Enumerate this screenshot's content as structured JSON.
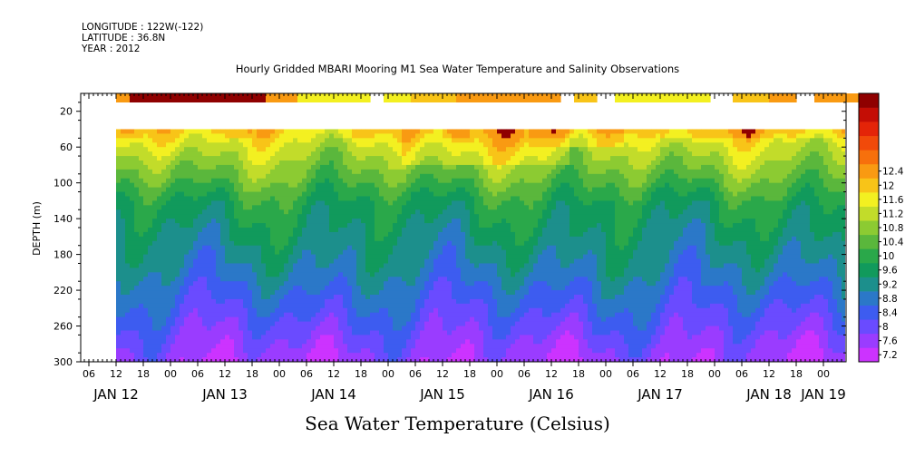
{
  "header": {
    "longitude": "LONGITUDE : 122W(-122)",
    "latitude": "LATITUDE : 36.8N",
    "year": "YEAR : 2012",
    "title": "Hourly Gridded MBARI Mooring M1 Sea Water Temperature and Salinity Observations"
  },
  "chart_data": {
    "type": "heatmap",
    "title": "Hourly Gridded MBARI Mooring M1 Sea Water Temperature and Salinity Observations",
    "xlabel": "",
    "ylabel": "DEPTH (m)",
    "colorbar_label": "Sea Water Temperature (Celsius)",
    "y_axis": {
      "range": [
        300,
        0
      ],
      "ticks": [
        20,
        60,
        100,
        140,
        180,
        220,
        260,
        300
      ]
    },
    "x_axis": {
      "hour_ticks": [
        "06",
        "12",
        "18",
        "00",
        "06",
        "12",
        "18",
        "00",
        "06",
        "12",
        "18",
        "00",
        "06",
        "12",
        "18",
        "00",
        "06",
        "12",
        "18",
        "00",
        "06",
        "12",
        "18",
        "00",
        "06",
        "12",
        "18",
        "00",
        "06",
        "12",
        "18",
        "00"
      ],
      "day_labels": [
        "JAN 12",
        "JAN 13",
        "JAN 14",
        "JAN 15",
        "JAN 16",
        "JAN 17",
        "JAN 18",
        "JAN 19"
      ],
      "day_label_hours": [
        0,
        24,
        48,
        72,
        96,
        120,
        144,
        156
      ]
    },
    "colorbar_levels": [
      7.2,
      7.6,
      8,
      8.4,
      8.8,
      9.2,
      9.6,
      10,
      10.4,
      10.8,
      11.2,
      11.6,
      12,
      12.4
    ],
    "colorbar_tick_labels": [
      "7.2",
      "7.6",
      "8",
      "8.4",
      "8.8",
      "9.2",
      "9.6",
      "10",
      "10.4",
      "10.8",
      "11.2",
      "11.6",
      "12",
      "12.4"
    ],
    "colorbar_colors": [
      "#cc33ff",
      "#9a3cff",
      "#6a4bff",
      "#3d5cf0",
      "#2b78c8",
      "#1c8f8c",
      "#119a5c",
      "#2aa84a",
      "#5ab73c",
      "#8ccb32",
      "#c2dc2a",
      "#f3f021",
      "#f8c418",
      "#f99a12",
      "#f7700c",
      "#f14a0a",
      "#e42408",
      "#c40d05",
      "#8f0000"
    ],
    "surface_bar": {
      "depth_m": 10,
      "gaps_hours": [
        [
          56,
          59
        ],
        [
          98,
          101
        ],
        [
          106,
          110
        ],
        [
          131,
          136
        ],
        [
          150,
          154
        ]
      ]
    },
    "gridded_depth_top_m": 40,
    "time_range_hours": [
      0,
      164
    ]
  }
}
